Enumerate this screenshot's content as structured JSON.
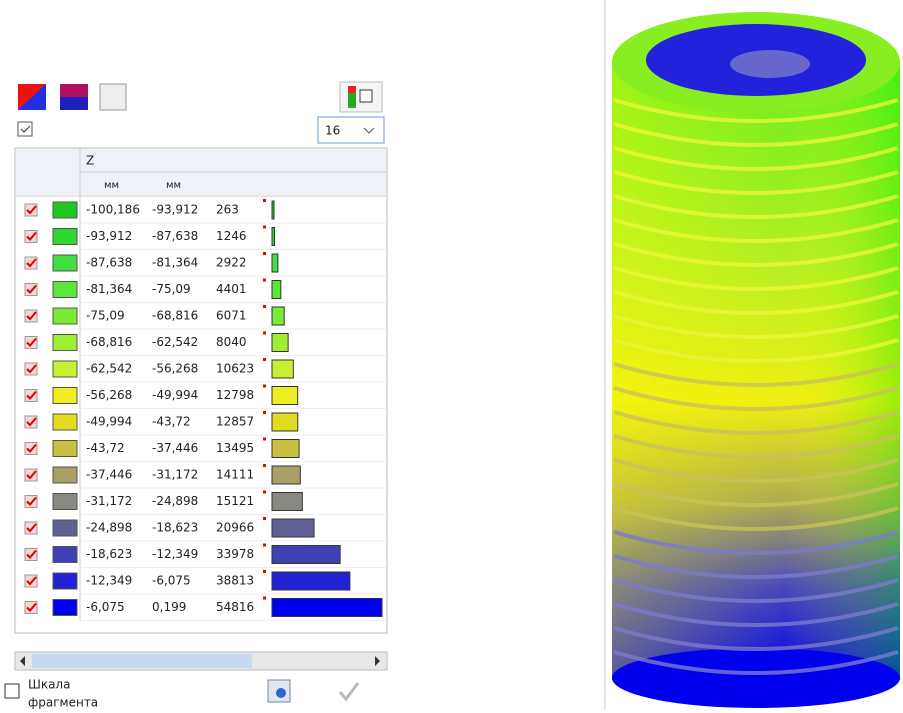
{
  "toolbar": {
    "dropdown": "16"
  },
  "table": {
    "column_header": "Z",
    "units": [
      "мм",
      "мм"
    ],
    "rows": [
      {
        "from": "-100,186",
        "to": "-93,912",
        "count": 263,
        "color": "#1fc81f"
      },
      {
        "from": "-93,912",
        "to": "-87,638",
        "count": 1246,
        "color": "#2ed82e"
      },
      {
        "from": "-87,638",
        "to": "-81,364",
        "count": 2922,
        "color": "#40e040"
      },
      {
        "from": "-81,364",
        "to": "-75,09",
        "count": 4401,
        "color": "#5ae63a"
      },
      {
        "from": "-75,09",
        "to": "-68,816",
        "count": 6071,
        "color": "#7aea36"
      },
      {
        "from": "-68,816",
        "to": "-62,542",
        "count": 8040,
        "color": "#9eee33"
      },
      {
        "from": "-62,542",
        "to": "-56,268",
        "count": 10623,
        "color": "#c8f030"
      },
      {
        "from": "-56,268",
        "to": "-49,994",
        "count": 12798,
        "color": "#eeee22"
      },
      {
        "from": "-49,994",
        "to": "-43,72",
        "count": 12857,
        "color": "#e2dc20"
      },
      {
        "from": "-43,72",
        "to": "-37,446",
        "count": 13495,
        "color": "#c8c040"
      },
      {
        "from": "-37,446",
        "to": "-31,172",
        "count": 14111,
        "color": "#a8a064"
      },
      {
        "from": "-31,172",
        "to": "-24,898",
        "count": 15121,
        "color": "#888880"
      },
      {
        "from": "-24,898",
        "to": "-18,623",
        "count": 20966,
        "color": "#606094"
      },
      {
        "from": "-18,623",
        "to": "-12,349",
        "count": 33978,
        "color": "#4040b4"
      },
      {
        "from": "-12,349",
        "to": "-6,075",
        "count": 38813,
        "color": "#2222d4"
      },
      {
        "from": "-6,075",
        "to": "0,199",
        "count": 54816,
        "color": "#0000f0"
      }
    ]
  },
  "footer": {
    "scale_label": [
      "Шкала",
      "фрагмента"
    ]
  }
}
